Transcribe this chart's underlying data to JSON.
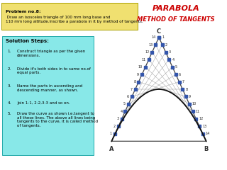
{
  "title1": "PARABOLA",
  "title2": "METHOD OF TANGENTS",
  "title_color": "#cc0000",
  "problem_text_bold": "Problem no.8:",
  "problem_text_rest": " Draw an isosceles triangle of 100 mm long base and\n110 mm long altitude.Inscribe a parabola in it by method of tangents.",
  "solution_steps": [
    "Construct triangle as per the given\ndimensions.",
    "Divide it's both sides in to same no.of\nequal parts.",
    "Name the parts in ascending and\ndescending manner, as shown.",
    "Join 1-1, 2-2,3-3 and so on.",
    "Draw the curve as shown i.e.tangent to\nall these lines. The above all lines being\ntangents to the curve, it is called method\nof tangents."
  ],
  "n_divisions": 14,
  "bg_color": "#ffffff",
  "triangle_color": "#444444",
  "tangent_color": "#888888",
  "parabola_color": "#111111",
  "dot_color": "#3355aa",
  "problem_bg": "#f0e070",
  "solution_bg": "#88e8e8"
}
